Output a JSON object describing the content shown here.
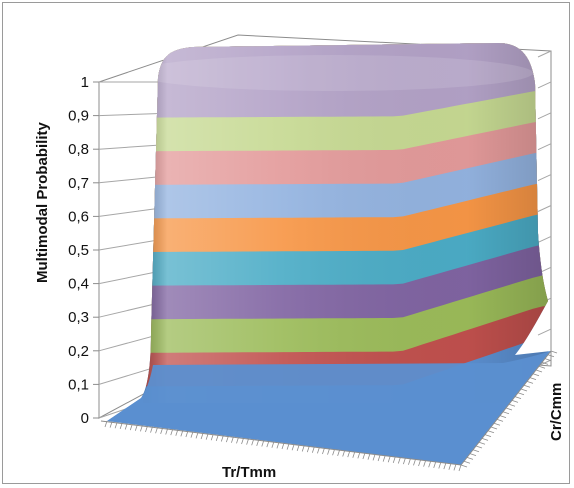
{
  "chart_data": {
    "type": "area",
    "subtype": "3d-surface",
    "title": "",
    "xlabel": "Tr/Tmm",
    "ylabel": "Multimodal Probability",
    "zlabel": "Cr/Cmm",
    "ylim": [
      0,
      1
    ],
    "yticks": [
      "0",
      "0,1",
      "0,2",
      "0,3",
      "0,4",
      "0,5",
      "0,6",
      "0,7",
      "0,8",
      "0,9",
      "1"
    ],
    "yvalues": [
      0,
      0.1,
      0.2,
      0.3,
      0.4,
      0.5,
      0.6,
      0.7,
      0.8,
      0.9,
      1
    ],
    "grid": true,
    "legend": "none",
    "band_colors": [
      "#5b8fd0",
      "#c0504d",
      "#9bbb59",
      "#8064a2",
      "#4bacc6",
      "#f79646",
      "#93b3e0",
      "#e39a9a",
      "#c6d992",
      "#b3a2c7"
    ]
  }
}
